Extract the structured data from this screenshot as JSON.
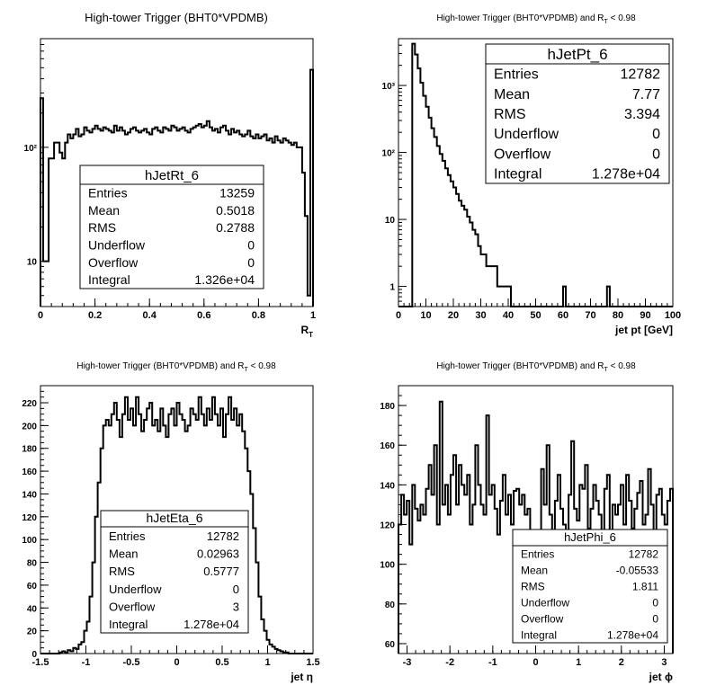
{
  "chart_data": [
    {
      "type": "histogram",
      "title": "High-tower Trigger (BHT0*VPDMB)",
      "xlabel": "R",
      "xlabel_sub": "T",
      "ylabel": "",
      "xlim": [
        0,
        1
      ],
      "ylim": [
        4,
        900
      ],
      "yscale": "log",
      "xticks": [
        {
          "v": 0,
          "l": "0"
        },
        {
          "v": 0.2,
          "l": "0.2"
        },
        {
          "v": 0.4,
          "l": "0.4"
        },
        {
          "v": 0.6,
          "l": "0.6"
        },
        {
          "v": 0.8,
          "l": "0.8"
        },
        {
          "v": 1,
          "l": "1"
        }
      ],
      "yticks": [
        {
          "v": 10,
          "l": "10"
        },
        {
          "v": 100,
          "l": "10²"
        }
      ],
      "bin_low": 0,
      "bin_width": 0.01,
      "values": [
        270,
        10,
        10,
        80,
        80,
        110,
        110,
        90,
        80,
        110,
        130,
        120,
        130,
        145,
        125,
        130,
        150,
        140,
        135,
        145,
        155,
        145,
        140,
        150,
        145,
        140,
        135,
        155,
        140,
        150,
        140,
        130,
        135,
        145,
        150,
        140,
        135,
        140,
        145,
        135,
        130,
        145,
        150,
        140,
        135,
        150,
        145,
        140,
        155,
        150,
        140,
        145,
        150,
        140,
        135,
        145,
        150,
        155,
        160,
        150,
        155,
        170,
        150,
        140,
        145,
        135,
        150,
        155,
        140,
        130,
        145,
        135,
        140,
        130,
        125,
        130,
        140,
        125,
        120,
        130,
        120,
        125,
        130,
        115,
        120,
        110,
        125,
        115,
        110,
        120,
        115,
        110,
        105,
        110,
        100,
        100,
        60,
        25,
        5,
        480
      ],
      "stats": {
        "name": "hJetRt_6",
        "rows": [
          [
            "Entries",
            "13259"
          ],
          [
            "Mean",
            "0.5018"
          ],
          [
            "RMS",
            "0.2788"
          ],
          [
            "Underflow",
            "0"
          ],
          [
            "Overflow",
            "0"
          ],
          [
            "Integral",
            "1.326e+04"
          ]
        ]
      }
    },
    {
      "type": "histogram",
      "title": "High-tower Trigger (BHT0*VPDMB) and R",
      "title_sub": "T",
      "title_suffix": " < 0.98",
      "xlabel": "jet pt [GeV]",
      "ylabel": "",
      "xlim": [
        0,
        100
      ],
      "ylim": [
        0.5,
        5000
      ],
      "yscale": "log",
      "xticks": [
        {
          "v": 0,
          "l": "0"
        },
        {
          "v": 10,
          "l": "10"
        },
        {
          "v": 20,
          "l": "20"
        },
        {
          "v": 30,
          "l": "30"
        },
        {
          "v": 40,
          "l": "40"
        },
        {
          "v": 50,
          "l": "50"
        },
        {
          "v": 60,
          "l": "60"
        },
        {
          "v": 70,
          "l": "70"
        },
        {
          "v": 80,
          "l": "80"
        },
        {
          "v": 90,
          "l": "90"
        },
        {
          "v": 100,
          "l": "100"
        }
      ],
      "yticks": [
        {
          "v": 1,
          "l": "1"
        },
        {
          "v": 10,
          "l": "10"
        },
        {
          "v": 100,
          "l": "10²"
        },
        {
          "v": 1000,
          "l": "10³"
        }
      ],
      "bin_low": 0,
      "bin_width": 1,
      "values": [
        0,
        0,
        0,
        0,
        0,
        4200,
        2900,
        1800,
        1100,
        700,
        480,
        330,
        230,
        170,
        125,
        95,
        75,
        58,
        46,
        37,
        30,
        24,
        19,
        16,
        14,
        11,
        9,
        7,
        6,
        4,
        3,
        3,
        2,
        2,
        2,
        2,
        1,
        1,
        1,
        1,
        1,
        0,
        0,
        0,
        0,
        0,
        0,
        0,
        0,
        0,
        0,
        0,
        0,
        0,
        0,
        0,
        0,
        0,
        0,
        0,
        1,
        0,
        0,
        0,
        0,
        0,
        0,
        0,
        0,
        0,
        0,
        0,
        0,
        0,
        0,
        0,
        1,
        0,
        0,
        0,
        0,
        0,
        0,
        0,
        0,
        0,
        0,
        0,
        0,
        0,
        0,
        0,
        0,
        0,
        0,
        0,
        0,
        0,
        0,
        0
      ],
      "stats": {
        "name": "hJetPt_6",
        "rows": [
          [
            "Entries",
            "12782"
          ],
          [
            "Mean",
            "7.77"
          ],
          [
            "RMS",
            "3.394"
          ],
          [
            "Underflow",
            "0"
          ],
          [
            "Overflow",
            "0"
          ],
          [
            "Integral",
            "1.278e+04"
          ]
        ]
      }
    },
    {
      "type": "histogram",
      "title": "High-tower Trigger (BHT0*VPDMB) and R",
      "title_sub": "T",
      "title_suffix": " < 0.98",
      "xlabel": "jet η",
      "ylabel": "",
      "xlim": [
        -1.5,
        1.5
      ],
      "ylim": [
        0,
        235
      ],
      "yscale": "linear",
      "xticks": [
        {
          "v": -1.5,
          "l": "-1.5"
        },
        {
          "v": -1,
          "l": "-1"
        },
        {
          "v": -0.5,
          "l": "-0.5"
        },
        {
          "v": 0,
          "l": "0"
        },
        {
          "v": 0.5,
          "l": "0.5"
        },
        {
          "v": 1,
          "l": "1"
        },
        {
          "v": 1.5,
          "l": "1.5"
        }
      ],
      "yticks": [
        {
          "v": 0,
          "l": "0"
        },
        {
          "v": 20,
          "l": "20"
        },
        {
          "v": 40,
          "l": "40"
        },
        {
          "v": 60,
          "l": "60"
        },
        {
          "v": 80,
          "l": "80"
        },
        {
          "v": 100,
          "l": "100"
        },
        {
          "v": 120,
          "l": "120"
        },
        {
          "v": 140,
          "l": "140"
        },
        {
          "v": 160,
          "l": "160"
        },
        {
          "v": 180,
          "l": "180"
        },
        {
          "v": 200,
          "l": "200"
        },
        {
          "v": 220,
          "l": "220"
        }
      ],
      "bin_low": -1.5,
      "bin_width": 0.03,
      "values": [
        0,
        0,
        0,
        0,
        0,
        0,
        0,
        1,
        2,
        1,
        3,
        2,
        5,
        4,
        8,
        10,
        20,
        28,
        50,
        80,
        120,
        150,
        180,
        200,
        205,
        200,
        210,
        220,
        205,
        190,
        210,
        225,
        205,
        215,
        200,
        225,
        210,
        195,
        205,
        215,
        220,
        200,
        205,
        195,
        215,
        200,
        190,
        210,
        215,
        200,
        220,
        210,
        205,
        195,
        200,
        215,
        210,
        205,
        225,
        210,
        200,
        215,
        205,
        225,
        210,
        200,
        215,
        190,
        210,
        225,
        205,
        215,
        200,
        210,
        195,
        180,
        160,
        140,
        110,
        80,
        50,
        30,
        20,
        12,
        8,
        6,
        4,
        3,
        2,
        1,
        1,
        0,
        0,
        0,
        0,
        0,
        0,
        0,
        0,
        0
      ],
      "stats": {
        "name": "hJetEta_6",
        "rows": [
          [
            "Entries",
            "12782"
          ],
          [
            "Mean",
            "0.02963"
          ],
          [
            "RMS",
            "0.5777"
          ],
          [
            "Underflow",
            "0"
          ],
          [
            "Overflow",
            "3"
          ],
          [
            "Integral",
            "1.278e+04"
          ]
        ]
      }
    },
    {
      "type": "histogram",
      "title": "High-tower Trigger (BHT0*VPDMB) and R",
      "title_sub": "T",
      "title_suffix": " < 0.98",
      "xlabel": "jet ϕ",
      "ylabel": "",
      "xlim": [
        -3.2,
        3.2
      ],
      "ylim": [
        55,
        190
      ],
      "yscale": "linear",
      "xticks": [
        {
          "v": -3,
          "l": "-3"
        },
        {
          "v": -2,
          "l": "-2"
        },
        {
          "v": -1,
          "l": "-1"
        },
        {
          "v": 0,
          "l": "0"
        },
        {
          "v": 1,
          "l": "1"
        },
        {
          "v": 2,
          "l": "2"
        },
        {
          "v": 3,
          "l": "3"
        }
      ],
      "yticks": [
        {
          "v": 60,
          "l": "60"
        },
        {
          "v": 80,
          "l": "80"
        },
        {
          "v": 100,
          "l": "100"
        },
        {
          "v": 120,
          "l": "120"
        },
        {
          "v": 140,
          "l": "140"
        },
        {
          "v": 160,
          "l": "160"
        },
        {
          "v": 180,
          "l": "180"
        }
      ],
      "bin_low": -3.2,
      "bin_width": 0.064,
      "values": [
        120,
        135,
        125,
        132,
        110,
        140,
        128,
        122,
        130,
        125,
        138,
        150,
        135,
        160,
        120,
        182,
        130,
        140,
        125,
        145,
        155,
        130,
        150,
        140,
        135,
        145,
        120,
        130,
        160,
        140,
        130,
        125,
        175,
        135,
        140,
        128,
        115,
        132,
        145,
        125,
        135,
        120,
        137,
        138,
        130,
        135,
        125,
        128,
        112,
        98,
        78,
        115,
        148,
        130,
        160,
        125,
        115,
        132,
        145,
        128,
        120,
        112,
        135,
        162,
        128,
        122,
        140,
        138,
        150,
        118,
        128,
        140,
        132,
        125,
        112,
        138,
        145,
        115,
        130,
        125,
        130,
        140,
        120,
        145,
        132,
        118,
        128,
        136,
        142,
        120,
        125,
        148,
        130,
        115,
        135,
        138,
        125,
        120,
        132,
        138
      ],
      "stats": {
        "name": "hJetPhi_6",
        "rows": [
          [
            "Entries",
            "12782"
          ],
          [
            "Mean",
            "-0.05533"
          ],
          [
            "RMS",
            "1.811"
          ],
          [
            "Underflow",
            "0"
          ],
          [
            "Overflow",
            "0"
          ],
          [
            "Integral",
            "1.278e+04"
          ]
        ]
      }
    }
  ]
}
